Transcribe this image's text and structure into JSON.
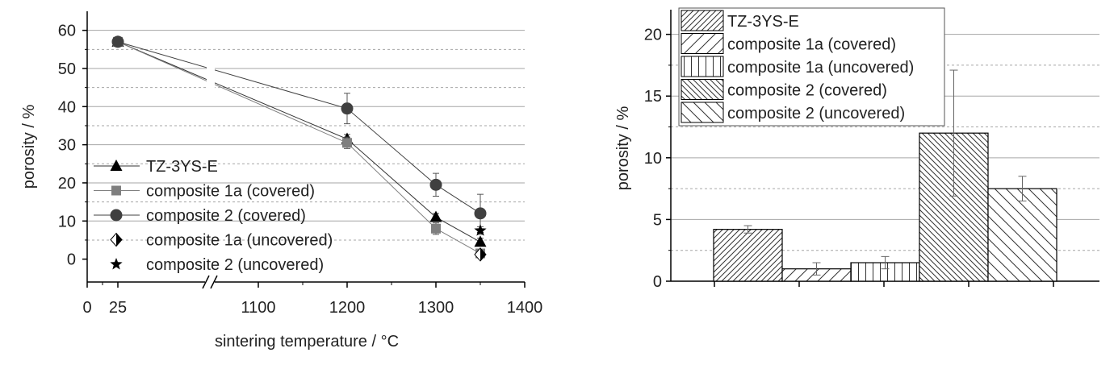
{
  "colors": {
    "tz3yse": "#000000",
    "composite1a_covered": "#7f7f7f",
    "composite2_covered": "#404040",
    "composite1a_uncovered": "#000000",
    "composite2_uncovered": "#000000",
    "grid": "#a6a6a6"
  },
  "chart_data": [
    {
      "type": "line",
      "title": "",
      "xlabel": "sintering temperature / °C",
      "ylabel": "porosity / %",
      "x_ticks": [
        "0",
        "25",
        "1100",
        "1200",
        "1300",
        "1400"
      ],
      "y_ticks": [
        "0",
        "10",
        "20",
        "30",
        "40",
        "50",
        "60"
      ],
      "ylim": [
        -6,
        65
      ],
      "axis_break": "between 25 and 1100",
      "grid": true,
      "legend_position": "bottom-left",
      "series": [
        {
          "name": "TZ-3YS-E",
          "marker": "triangle",
          "x": [
            25,
            1200,
            1300,
            1350
          ],
          "y": [
            57,
            31.5,
            11,
            4.5
          ],
          "err": [
            0.8,
            1.2,
            1.0,
            1.0
          ]
        },
        {
          "name": "composite 1a (covered)",
          "marker": "square",
          "x": [
            25,
            1200,
            1300,
            1350
          ],
          "y": [
            57,
            30.5,
            8,
            1.5
          ],
          "err": [
            0.8,
            1.5,
            1.5,
            1.0
          ]
        },
        {
          "name": "composite 2 (covered)",
          "marker": "circle",
          "x": [
            25,
            1200,
            1300,
            1350
          ],
          "y": [
            57,
            39.5,
            19.5,
            12
          ],
          "err": [
            0.8,
            4.0,
            3.0,
            5.0
          ]
        },
        {
          "name": "composite 1a (uncovered)",
          "marker": "half-diamond",
          "x": [
            1350
          ],
          "y": [
            1.2
          ],
          "err": [
            0.8
          ]
        },
        {
          "name": "composite 2 (uncovered)",
          "marker": "star",
          "x": [
            1350
          ],
          "y": [
            7.5
          ],
          "err": [
            1.0
          ]
        }
      ]
    },
    {
      "type": "bar",
      "title": "",
      "xlabel": "",
      "ylabel": "porosity / %",
      "y_ticks": [
        "0",
        "5",
        "10",
        "15",
        "20"
      ],
      "ylim": [
        0,
        22
      ],
      "grid": true,
      "legend_position": "top-left",
      "series": [
        {
          "name": "TZ-3YS-E",
          "value": 4.2,
          "err": 0.3,
          "pattern": "diag-dense-up"
        },
        {
          "name": "composite 1a (covered)",
          "value": 1.0,
          "err": 0.5,
          "pattern": "diag-sparse-up"
        },
        {
          "name": "composite 1a (uncovered)",
          "value": 1.5,
          "err": 0.5,
          "pattern": "vertical"
        },
        {
          "name": "composite 2 (covered)",
          "value": 12.0,
          "err": 5.1,
          "pattern": "diag-dense-down"
        },
        {
          "name": "composite 2 (uncovered)",
          "value": 7.5,
          "err": 1.0,
          "pattern": "diag-sparse-down"
        }
      ]
    }
  ]
}
